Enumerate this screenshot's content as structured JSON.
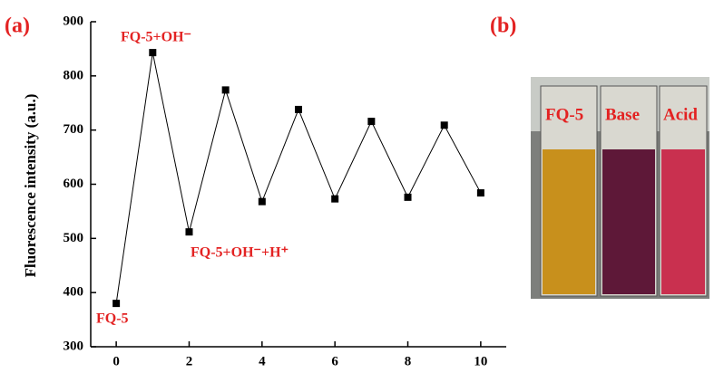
{
  "chart_data": {
    "type": "line",
    "panel_label": "(a)",
    "y_label": "Fluorescence intensity (a.u.)",
    "x": [
      0,
      1,
      2,
      3,
      4,
      5,
      6,
      7,
      8,
      9,
      10
    ],
    "series": [
      {
        "color": "#000000",
        "values": [
          380,
          843,
          512,
          774,
          568,
          738,
          573,
          716,
          576,
          709,
          584
        ]
      }
    ],
    "xlim": [
      -0.7,
      10.7
    ],
    "xticks": [
      0,
      2,
      4,
      6,
      8,
      10
    ],
    "ylim": [
      300,
      900
    ],
    "yticks": [
      300,
      400,
      500,
      600,
      700,
      800,
      900
    ],
    "annotations": [
      "FQ-5+OH⁻",
      "FQ-5+OH⁻+H⁺",
      "FQ-5"
    ]
  },
  "photo": {
    "panel_label": "(b)",
    "labels": [
      "FQ-5",
      "Base",
      "Acid"
    ]
  }
}
